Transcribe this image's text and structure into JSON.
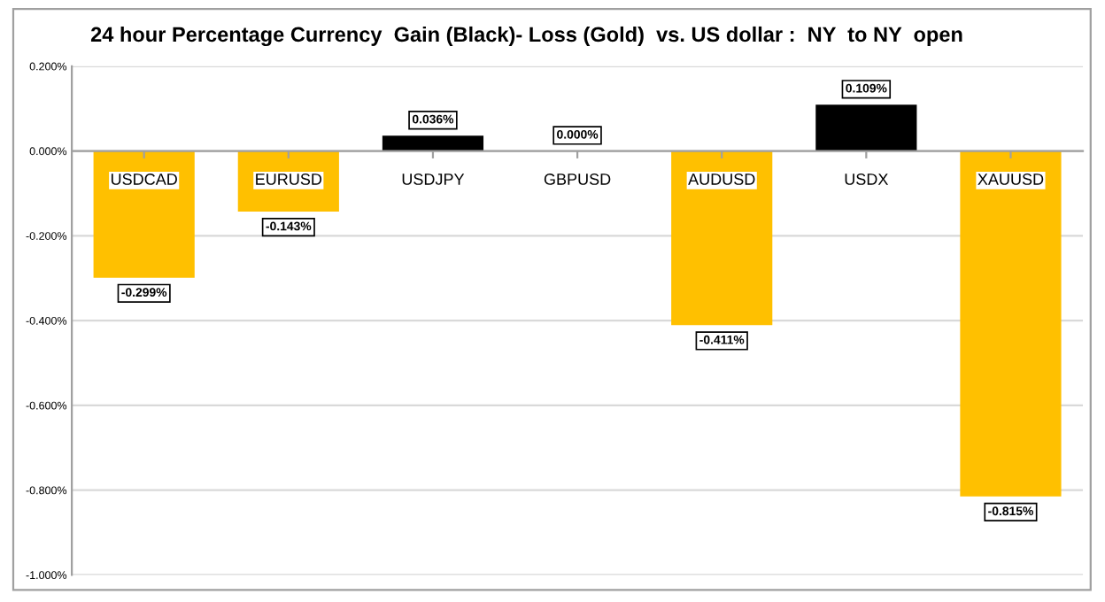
{
  "chart_data": {
    "type": "bar",
    "title": "24 hour Percentage Currency  Gain (Black)- Loss (Gold)  vs. US dollar :  NY  to NY  open",
    "categories": [
      "USDCAD",
      "EURUSD",
      "USDJPY",
      "GBPUSD",
      "AUDUSD",
      "USDX",
      "XAUUSD"
    ],
    "values": [
      -0.299,
      -0.143,
      0.036,
      0.0,
      -0.411,
      0.109,
      -0.815
    ],
    "colors": [
      "#ffc000",
      "#ffc000",
      "#000000",
      "#000000",
      "#ffc000",
      "#000000",
      "#ffc000"
    ],
    "value_labels": [
      "-0.299%",
      "-0.143%",
      "0.036%",
      "0.000%",
      "-0.411%",
      "0.109%",
      "-0.815%"
    ],
    "ylim": [
      -1.0,
      0.2
    ],
    "yticks": [
      {
        "value": -1.0,
        "label": "-1.000%"
      },
      {
        "value": -0.8,
        "label": "-0.800%"
      },
      {
        "value": -0.6,
        "label": "-0.600%"
      },
      {
        "value": -0.4,
        "label": "-0.400%"
      },
      {
        "value": -0.2,
        "label": "-0.200%"
      },
      {
        "value": 0.0,
        "label": "0.000%"
      },
      {
        "value": 0.2,
        "label": "0.200%"
      }
    ],
    "grid": "y",
    "legend": false
  }
}
